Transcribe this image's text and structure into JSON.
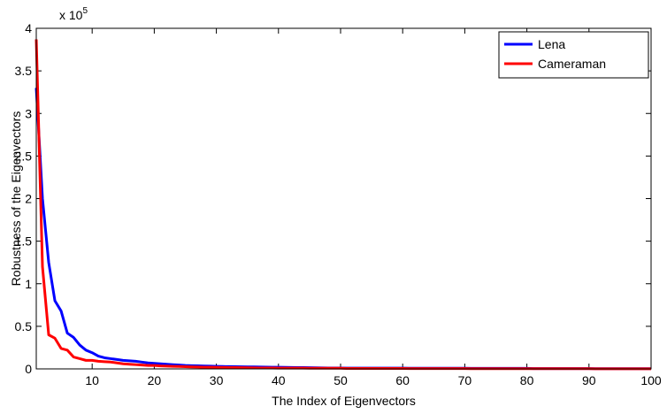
{
  "chart_data": {
    "type": "line",
    "xlabel": "The Index of Eigenvectors",
    "ylabel": "Robustness of the Eigenvectors",
    "y_multiplier": {
      "base": "x 10",
      "exponent": "5"
    },
    "x": [
      1,
      2,
      3,
      4,
      5,
      6,
      7,
      8,
      9,
      10,
      11,
      12,
      13,
      14,
      15,
      16,
      17,
      18,
      19,
      20,
      21,
      22,
      23,
      24,
      25,
      26,
      27,
      28,
      29,
      30,
      31,
      32,
      33,
      34,
      35,
      36,
      37,
      38,
      39,
      40,
      41,
      42,
      43,
      44,
      45,
      46,
      47,
      48,
      49,
      50,
      51,
      52,
      53,
      54,
      55,
      56,
      57,
      58,
      59,
      60,
      61,
      62,
      63,
      64,
      65,
      66,
      67,
      68,
      69,
      70,
      71,
      72,
      73,
      74,
      75,
      76,
      77,
      78,
      79,
      80,
      81,
      82,
      83,
      84,
      85,
      86,
      87,
      88,
      89,
      90,
      91,
      92,
      93,
      94,
      95,
      96,
      97,
      98,
      99,
      100
    ],
    "series": [
      {
        "name": "Lena",
        "color": "#0000ff",
        "values": [
          3.3,
          2.0,
          1.25,
          0.8,
          0.68,
          0.42,
          0.37,
          0.28,
          0.22,
          0.19,
          0.15,
          0.13,
          0.12,
          0.11,
          0.1,
          0.095,
          0.09,
          0.08,
          0.07,
          0.065,
          0.06,
          0.055,
          0.05,
          0.045,
          0.04,
          0.038,
          0.036,
          0.034,
          0.032,
          0.03,
          0.028,
          0.027,
          0.026,
          0.025,
          0.024,
          0.023,
          0.022,
          0.021,
          0.02,
          0.019,
          0.018,
          0.017,
          0.016,
          0.015,
          0.014,
          0.013,
          0.012,
          0.011,
          0.01,
          0.01,
          0.009,
          0.009,
          0.009,
          0.009,
          0.009,
          0.009,
          0.009,
          0.009,
          0.009,
          0.009,
          0.008,
          0.008,
          0.008,
          0.008,
          0.008,
          0.008,
          0.008,
          0.008,
          0.008,
          0.008,
          0.006,
          0.006,
          0.006,
          0.006,
          0.006,
          0.006,
          0.006,
          0.006,
          0.006,
          0.006,
          0.004,
          0.004,
          0.004,
          0.004,
          0.004,
          0.004,
          0.004,
          0.004,
          0.004,
          0.004,
          0.002,
          0.002,
          0.002,
          0.002,
          0.002,
          0.002,
          0.002,
          0.002,
          0.002,
          0.002
        ]
      },
      {
        "name": "Cameraman",
        "color": "#ff0000",
        "values": [
          3.87,
          1.2,
          0.4,
          0.36,
          0.24,
          0.22,
          0.14,
          0.12,
          0.1,
          0.1,
          0.09,
          0.085,
          0.08,
          0.07,
          0.06,
          0.055,
          0.05,
          0.045,
          0.04,
          0.04,
          0.035,
          0.033,
          0.03,
          0.028,
          0.026,
          0.024,
          0.022,
          0.02,
          0.019,
          0.018,
          0.017,
          0.016,
          0.015,
          0.014,
          0.013,
          0.012,
          0.011,
          0.01,
          0.01,
          0.009,
          0.009,
          0.009,
          0.009,
          0.009,
          0.008,
          0.008,
          0.008,
          0.008,
          0.008,
          0.008,
          0.005,
          0.005,
          0.005,
          0.005,
          0.005,
          0.005,
          0.005,
          0.005,
          0.005,
          0.005,
          0.004,
          0.004,
          0.004,
          0.004,
          0.004,
          0.004,
          0.004,
          0.004,
          0.004,
          0.004,
          0.003,
          0.003,
          0.003,
          0.003,
          0.003,
          0.003,
          0.003,
          0.003,
          0.003,
          0.003,
          0.002,
          0.002,
          0.002,
          0.002,
          0.002,
          0.002,
          0.002,
          0.002,
          0.002,
          0.002,
          0.001,
          0.001,
          0.001,
          0.001,
          0.001,
          0.001,
          0.001,
          0.001,
          0.001,
          0.001
        ]
      }
    ],
    "xlim": [
      1,
      100
    ],
    "xticks": [
      10,
      20,
      30,
      40,
      50,
      60,
      70,
      80,
      90,
      100
    ],
    "ylim": [
      0,
      4
    ],
    "yticks": [
      0,
      0.5,
      1,
      1.5,
      2,
      2.5,
      3,
      3.5,
      4
    ],
    "legend": "upper right",
    "grid": false
  }
}
